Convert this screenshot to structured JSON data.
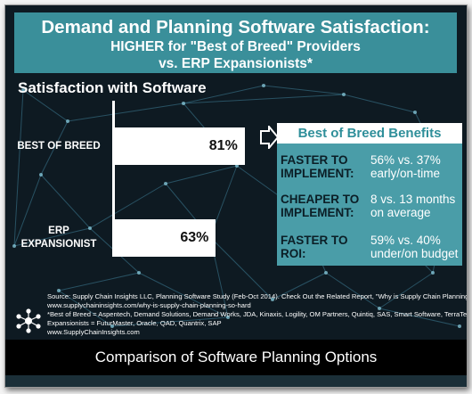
{
  "header": {
    "line1": "Demand and Planning Software Satisfaction:",
    "line2": "HIGHER for \"Best of Breed\" Providers",
    "line3": "vs. ERP Expansionists*"
  },
  "chart_data": {
    "type": "bar",
    "orientation": "horizontal",
    "title": "Satisfaction with Software",
    "categories": [
      "BEST OF BREED",
      "ERP EXPANSIONIST"
    ],
    "category_lines": [
      [
        "BEST OF BREED"
      ],
      [
        "ERP",
        "EXPANSIONIST"
      ]
    ],
    "values": [
      81,
      63
    ],
    "value_labels": [
      "81%",
      "63%"
    ],
    "xlim": [
      0,
      100
    ],
    "grid": false,
    "bar_color": "#ffffff"
  },
  "benefits": {
    "title": "Best of Breed Benefits",
    "items": [
      {
        "label_lines": [
          "FASTER TO",
          "IMPLEMENT:"
        ],
        "value_lines": [
          "56% vs. 37%",
          "early/on-time"
        ]
      },
      {
        "label_lines": [
          "CHEAPER TO",
          "IMPLEMENT:"
        ],
        "value_lines": [
          "8 vs. 13 months",
          "on average"
        ]
      },
      {
        "label_lines": [
          "FASTER TO",
          "ROI:"
        ],
        "value_lines": [
          "59% vs. 40%",
          "under/on budget"
        ]
      }
    ]
  },
  "footer": {
    "lines": [
      "Source: Supply Chain Insights LLC, Planning Software Study (Feb-Oct 2014). Check Out the Related Report, \"Why is Supply Chain Planning So Hard?\"",
      "www.supplychaininsights.com/why-is-supply-chain-planning-so-hard",
      "*Best of Breed = Aspentech, Demand Solutions, Demand Works, JDA, Kinaxis, Logility, OM Partners, Quintiq, SAS, Smart Software, TerraTech; ERP",
      "Expansionists = FuturMaster, Oracle, QAD, Quantrix, SAP",
      "www.SupplyChainInsights.com"
    ]
  },
  "caption": "Comparison of Software Planning Options",
  "colors": {
    "header_bg": "#3a8f9a",
    "panel_bg": "#4a9da8",
    "background": "#0e1a22",
    "network_lines": "#3f7f98"
  },
  "icons": {
    "logo": "network-node-icon",
    "arrow": "right-arrow-icon"
  }
}
